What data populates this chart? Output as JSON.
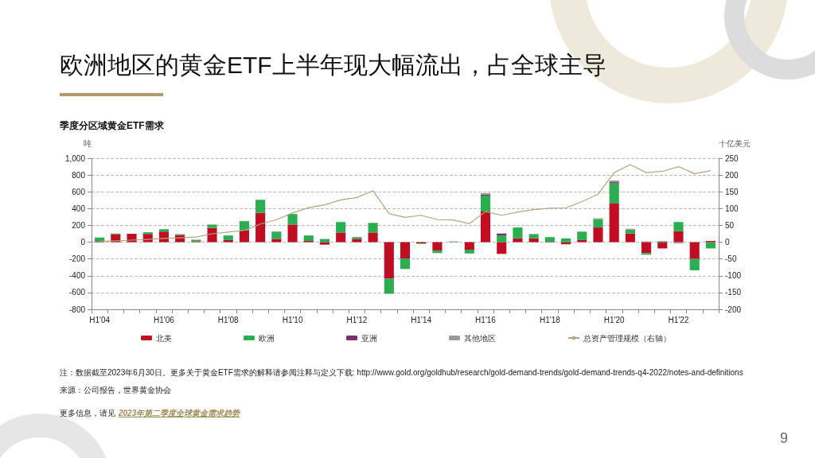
{
  "chart_data": {
    "type": "bar",
    "title": "欧洲地区的黄金ETF上半年现大幅流出，占全球主导",
    "subtitle": "季度分区域黄金ETF需求",
    "ylabel": "吨",
    "y2label": "十亿美元",
    "categories": [
      "H1'04",
      null,
      null,
      null,
      "H1'06",
      null,
      null,
      null,
      "H1'08",
      null,
      null,
      null,
      "H1'10",
      null,
      null,
      null,
      "H1'12",
      null,
      null,
      null,
      "H1'14",
      null,
      null,
      null,
      "H1'16",
      null,
      null,
      null,
      "H1'18",
      null,
      null,
      null,
      "H1'20",
      null,
      null,
      null,
      "H1'22",
      null,
      null
    ],
    "stacked": true,
    "series": [
      {
        "name": "北美",
        "color": "#c00d23",
        "values": [
          5,
          95,
          100,
          98,
          125,
          85,
          10,
          170,
          25,
          140,
          350,
          40,
          210,
          15,
          -30,
          115,
          40,
          115,
          -435,
          -195,
          -15,
          -100,
          0,
          -90,
          365,
          -140,
          45,
          45,
          5,
          -25,
          25,
          175,
          460,
          105,
          -130,
          -75,
          130,
          -200,
          15
        ]
      },
      {
        "name": "欧洲",
        "color": "#2bae4f",
        "values": [
          50,
          8,
          0,
          20,
          30,
          10,
          20,
          40,
          55,
          110,
          155,
          80,
          125,
          65,
          35,
          125,
          20,
          115,
          -180,
          -125,
          -5,
          -30,
          5,
          -45,
          190,
          80,
          130,
          50,
          55,
          45,
          100,
          100,
          240,
          45,
          -20,
          10,
          110,
          -135,
          -75
        ]
      },
      {
        "name": "亚洲",
        "color": "#7b2f6e",
        "values": [
          0,
          0,
          0,
          0,
          0,
          0,
          0,
          0,
          0,
          0,
          0,
          0,
          0,
          0,
          0,
          0,
          0,
          0,
          0,
          0,
          0,
          0,
          0,
          0,
          10,
          20,
          0,
          0,
          0,
          0,
          0,
          0,
          15,
          0,
          0,
          0,
          0,
          0,
          0
        ]
      },
      {
        "name": "其他地区",
        "color": "#9a9a9a",
        "values": [
          0,
          0,
          0,
          0,
          0,
          0,
          0,
          0,
          0,
          0,
          0,
          10,
          0,
          0,
          5,
          0,
          0,
          0,
          0,
          0,
          3,
          0,
          5,
          0,
          20,
          5,
          0,
          5,
          0,
          0,
          0,
          10,
          20,
          10,
          10,
          5,
          -15,
          0,
          0
        ]
      },
      {
        "name": "总资产管理规模（右轴）",
        "type": "line",
        "axis": "y2",
        "color": "#b9a37e",
        "values": [
          2,
          4,
          6,
          8,
          11,
          13,
          15,
          25,
          30,
          35,
          54,
          67,
          87,
          103,
          111,
          126,
          133,
          153,
          85,
          74,
          80,
          67,
          66,
          55,
          91,
          80,
          90,
          97,
          101,
          102,
          121,
          143,
          207,
          231,
          207,
          211,
          225,
          204,
          213
        ]
      }
    ],
    "ylim": [
      -800,
      1000
    ],
    "yticks": [
      -800,
      -600,
      -400,
      -200,
      0,
      200,
      400,
      600,
      800,
      {
        "value": 1000,
        "label": "1,000"
      }
    ],
    "y2lim": [
      -200,
      250
    ],
    "y2ticks": [
      -200,
      -150,
      -100,
      -50,
      0,
      50,
      100,
      150,
      200,
      250
    ],
    "grid": "y",
    "legend": "bottom",
    "annotations": [
      "注：数据截至2023年6月30日。更多关于黄金ETF需求的解释请参阅注释与定义下载: http://www.gold.org/goldhub/research/gold-demand-trends/gold-demand-trends-q4-2022/notes-and-definitions",
      "来源：公司报告，世界黄金协会",
      "更多信息，请见",
      "2023年第二季度全球黄金需求趋势",
      "9"
    ]
  }
}
